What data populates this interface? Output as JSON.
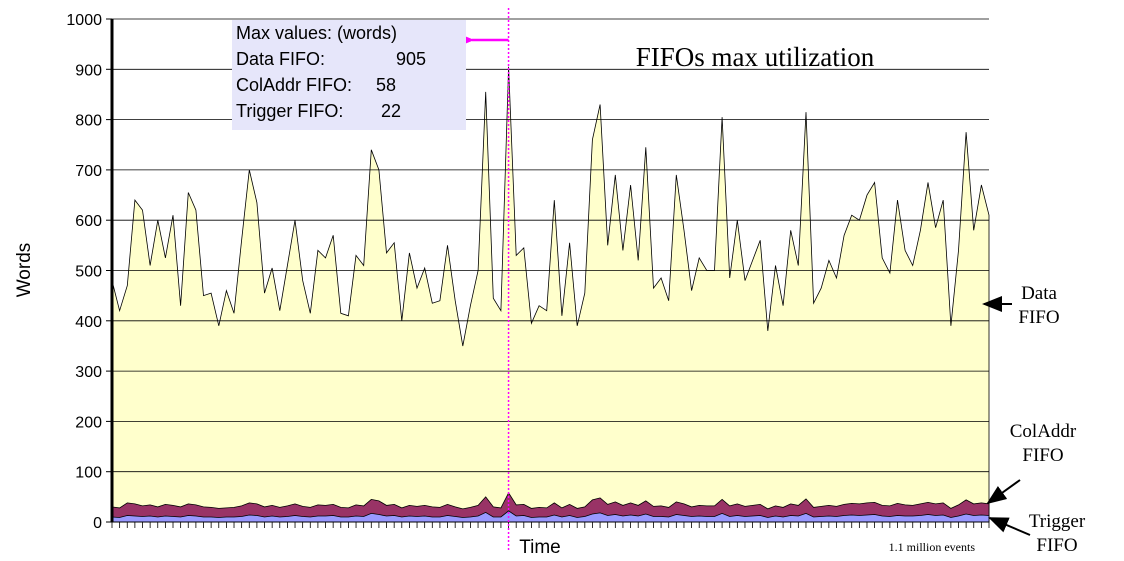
{
  "chart_data": {
    "type": "area",
    "title": "FIFOs max utilization",
    "ylabel": "Words",
    "xlabel": "Time",
    "note": "1.1 million events",
    "ylim": [
      0,
      1000
    ],
    "yticks": [
      0,
      100,
      200,
      300,
      400,
      500,
      600,
      700,
      800,
      900,
      1000
    ],
    "grid": true,
    "max_values": {
      "title": "Max values: (words)",
      "rows": [
        {
          "name": "Data FIFO:",
          "value": 905
        },
        {
          "name": "ColAddr FIFO:",
          "value": 58
        },
        {
          "name": "Trigger FIFO:",
          "value": 22
        }
      ]
    },
    "series": [
      {
        "name": "Data FIFO",
        "color": "#ffffcc",
        "values": [
          480,
          420,
          470,
          640,
          620,
          510,
          600,
          525,
          610,
          430,
          655,
          620,
          450,
          455,
          390,
          460,
          415,
          560,
          700,
          635,
          455,
          505,
          420,
          510,
          600,
          480,
          415,
          540,
          525,
          570,
          415,
          410,
          530,
          510,
          740,
          700,
          535,
          555,
          400,
          535,
          465,
          505,
          435,
          440,
          550,
          440,
          350,
          430,
          500,
          855,
          445,
          420,
          905,
          530,
          545,
          395,
          430,
          420,
          640,
          410,
          555,
          390,
          455,
          760,
          830,
          550,
          690,
          540,
          670,
          520,
          745,
          465,
          485,
          440,
          690,
          580,
          460,
          525,
          500,
          500,
          805,
          485,
          600,
          480,
          520,
          560,
          380,
          510,
          430,
          580,
          510,
          815,
          435,
          465,
          520,
          485,
          570,
          610,
          600,
          650,
          675,
          525,
          495,
          640,
          540,
          510,
          580,
          675,
          585,
          640,
          390,
          540,
          775,
          580,
          670,
          610
        ]
      },
      {
        "name": "ColAddr FIFO",
        "color": "#993366",
        "values": [
          30,
          28,
          38,
          36,
          32,
          34,
          30,
          35,
          33,
          30,
          36,
          34,
          30,
          29,
          27,
          28,
          29,
          32,
          38,
          36,
          30,
          33,
          29,
          32,
          36,
          31,
          29,
          34,
          33,
          35,
          29,
          28,
          34,
          32,
          45,
          42,
          33,
          35,
          28,
          33,
          31,
          33,
          30,
          29,
          35,
          30,
          26,
          29,
          33,
          50,
          30,
          28,
          58,
          34,
          35,
          27,
          29,
          28,
          38,
          28,
          35,
          27,
          30,
          44,
          48,
          35,
          40,
          33,
          38,
          33,
          42,
          31,
          32,
          29,
          40,
          36,
          30,
          33,
          32,
          32,
          45,
          32,
          36,
          31,
          33,
          35,
          26,
          32,
          29,
          36,
          33,
          46,
          29,
          31,
          33,
          31,
          35,
          37,
          36,
          38,
          39,
          33,
          32,
          37,
          34,
          33,
          36,
          39,
          36,
          38,
          27,
          34,
          44,
          36,
          38,
          36
        ]
      },
      {
        "name": "Trigger FIFO",
        "color": "#9999ff",
        "values": [
          10,
          9,
          13,
          12,
          11,
          12,
          10,
          12,
          11,
          10,
          13,
          12,
          10,
          10,
          9,
          10,
          10,
          11,
          14,
          13,
          10,
          12,
          10,
          11,
          13,
          11,
          10,
          12,
          12,
          13,
          10,
          10,
          12,
          11,
          17,
          15,
          12,
          13,
          10,
          12,
          11,
          12,
          10,
          10,
          13,
          11,
          9,
          10,
          12,
          19,
          10,
          10,
          22,
          12,
          13,
          9,
          10,
          10,
          14,
          10,
          13,
          9,
          11,
          16,
          18,
          13,
          15,
          12,
          14,
          12,
          16,
          11,
          11,
          10,
          15,
          13,
          11,
          12,
          11,
          11,
          17,
          11,
          13,
          11,
          12,
          13,
          9,
          12,
          10,
          13,
          12,
          17,
          10,
          11,
          12,
          11,
          13,
          14,
          13,
          14,
          15,
          12,
          11,
          13,
          12,
          12,
          13,
          15,
          13,
          14,
          9,
          12,
          16,
          13,
          14,
          13
        ]
      }
    ]
  }
}
